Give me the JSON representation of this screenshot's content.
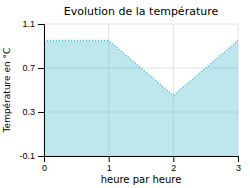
{
  "chart_data": {
    "type": "area",
    "title": "Evolution de la température",
    "xlabel": "heure par heure",
    "ylabel": "Température en °C",
    "x": [
      0,
      1,
      2,
      3
    ],
    "values": [
      0.95,
      0.95,
      0.45,
      0.95
    ],
    "xlim": [
      0,
      3
    ],
    "ylim": [
      -0.1,
      1.1
    ],
    "xticks": [
      0,
      1,
      2,
      3
    ],
    "yticks": [
      -0.1,
      0.3,
      0.7,
      1.1
    ],
    "grid": true,
    "color": "#44bbcc",
    "line_style": "dotted"
  }
}
